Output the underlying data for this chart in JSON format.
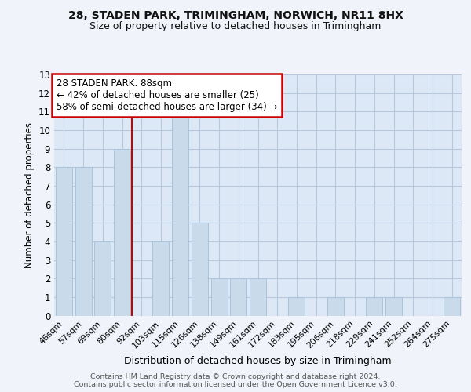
{
  "title1": "28, STADEN PARK, TRIMINGHAM, NORWICH, NR11 8HX",
  "title2": "Size of property relative to detached houses in Trimingham",
  "xlabel": "Distribution of detached houses by size in Trimingham",
  "ylabel": "Number of detached properties",
  "categories": [
    "46sqm",
    "57sqm",
    "69sqm",
    "80sqm",
    "92sqm",
    "103sqm",
    "115sqm",
    "126sqm",
    "138sqm",
    "149sqm",
    "161sqm",
    "172sqm",
    "183sqm",
    "195sqm",
    "206sqm",
    "218sqm",
    "229sqm",
    "241sqm",
    "252sqm",
    "264sqm",
    "275sqm"
  ],
  "values": [
    8,
    8,
    4,
    9,
    0,
    4,
    11,
    5,
    2,
    2,
    2,
    0,
    1,
    0,
    1,
    0,
    1,
    1,
    0,
    0,
    1
  ],
  "bar_color": "#c9daea",
  "bar_edge_color": "#a8c4dc",
  "grid_color": "#b8c8dc",
  "annotation_text": "28 STADEN PARK: 88sqm\n← 42% of detached houses are smaller (25)\n58% of semi-detached houses are larger (34) →",
  "annotation_box_color": "#ffffff",
  "annotation_box_edge_color": "#cc0000",
  "vline_color": "#cc0000",
  "ylim": [
    0,
    13
  ],
  "yticks": [
    0,
    1,
    2,
    3,
    4,
    5,
    6,
    7,
    8,
    9,
    10,
    11,
    12,
    13
  ],
  "footer": "Contains HM Land Registry data © Crown copyright and database right 2024.\nContains public sector information licensed under the Open Government Licence v3.0.",
  "bg_color": "#dce8f5",
  "fig_bg_color": "#f0f4fa"
}
